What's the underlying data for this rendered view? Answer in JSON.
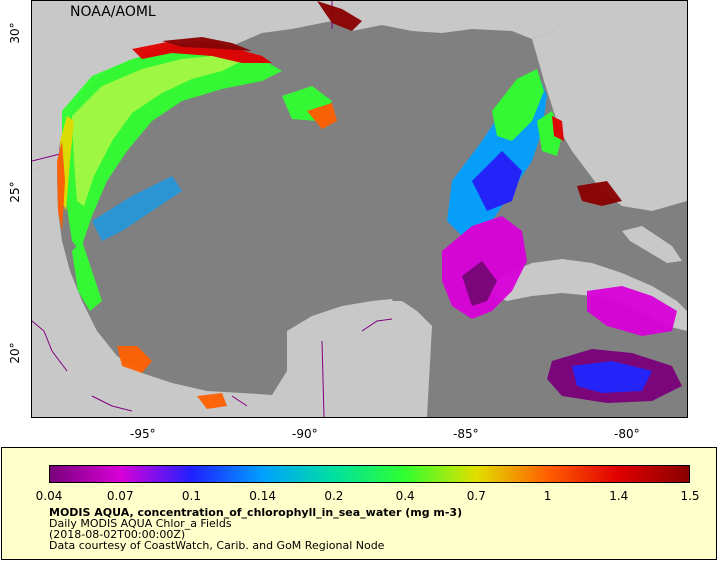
{
  "credit": "NOAA/AOML",
  "axes": {
    "lon_ticks": [
      "-95°",
      "-90°",
      "-85°",
      "-80°"
    ],
    "lat_ticks": [
      "30°",
      "25°",
      "20°"
    ]
  },
  "colorbar": {
    "ticks": [
      "0.04",
      "0.07",
      "0.1",
      "0.14",
      "0.2",
      "0.4",
      "0.7",
      "1",
      "1.4",
      "1.5"
    ],
    "colors": [
      "#7a007a",
      "#d800d8",
      "#2020ff",
      "#00a0ff",
      "#00e0a0",
      "#30ff30",
      "#e0e000",
      "#ff6000",
      "#e00000",
      "#8a0000"
    ]
  },
  "legend": {
    "title": "MODIS AQUA, concentration_of_chlorophyll_in_sea_water (mg m-3)",
    "line2": "Daily MODIS AQUA Chlor_a Fields",
    "line3": "(2018-08-02T00:00:00Z)",
    "line4": "Data courtesy of CoastWatch, Carib. and GoM Regional Node"
  },
  "colors": {
    "water": "#808080",
    "land": "#c8c8c8",
    "legend_bg": "#ffffcc",
    "borders": "#800080"
  }
}
